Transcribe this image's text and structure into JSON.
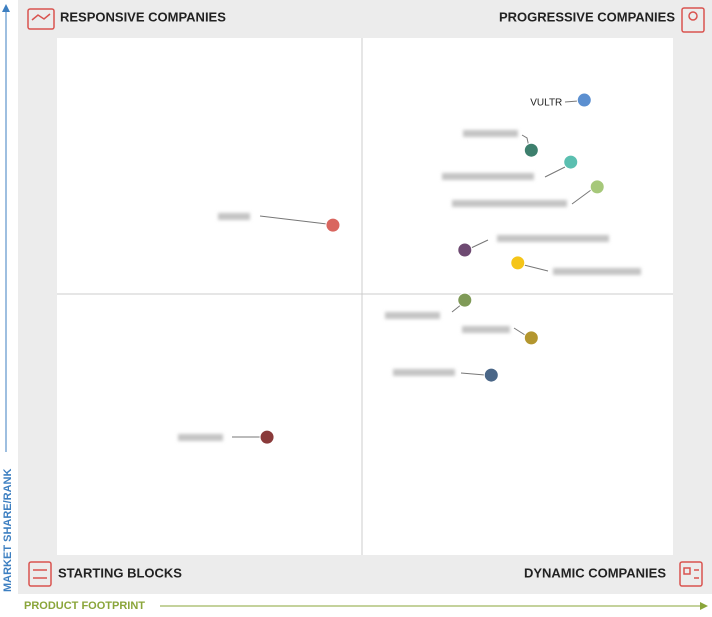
{
  "chart_data": {
    "type": "scatter",
    "quadrants": {
      "top_left": "RESPONSIVE COMPANIES",
      "top_right": "PROGRESSIVE COMPANIES",
      "bottom_left": "STARTING BLOCKS",
      "bottom_right": "DYNAMIC COMPANIES"
    },
    "y_label": "MARKET SHARE/RANK",
    "x_label": "PRODUCT FOOTPRINT",
    "xlim": [
      0,
      100
    ],
    "ylim": [
      0,
      100
    ],
    "points": [
      {
        "label": "VULTR",
        "x": 85.6,
        "y": 88.0,
        "color": "#5b8fd0"
      },
      {
        "x": 77.0,
        "y": 78.3,
        "color": "#3d7f6d"
      },
      {
        "x": 83.4,
        "y": 76.0,
        "color": "#5bbfb0"
      },
      {
        "x": 87.7,
        "y": 71.2,
        "color": "#a6c87a"
      },
      {
        "x": 44.8,
        "y": 63.8,
        "color": "#d9665f"
      },
      {
        "x": 66.2,
        "y": 59.0,
        "color": "#6e4a72"
      },
      {
        "x": 74.8,
        "y": 56.5,
        "color": "#f5c518"
      },
      {
        "x": 66.2,
        "y": 49.3,
        "color": "#7f9a57"
      },
      {
        "x": 77.0,
        "y": 42.0,
        "color": "#b3962f"
      },
      {
        "x": 70.5,
        "y": 34.8,
        "color": "#4a6687"
      },
      {
        "x": 34.1,
        "y": 22.8,
        "color": "#8a3a3a"
      }
    ]
  }
}
